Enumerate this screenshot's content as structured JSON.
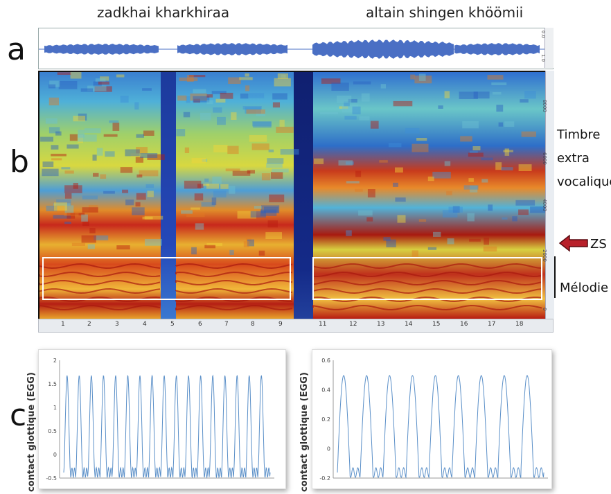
{
  "titles": {
    "left": "zadkhai kharkhiraa",
    "right": "altain shingen khöömii"
  },
  "panel_letters": {
    "a": "a",
    "b": "b",
    "c": "c"
  },
  "waveform": {
    "ruler_labels": [
      "0.0",
      "1.0"
    ],
    "color": "#4a6fc4"
  },
  "spectrogram": {
    "freq_labels": [
      "8000",
      "6000",
      "4000",
      "2000",
      "0"
    ],
    "time_labels": [
      "1",
      "2",
      "3",
      "4",
      "5",
      "6",
      "7",
      "8",
      "9",
      "11",
      "12",
      "13",
      "14",
      "15",
      "16",
      "17",
      "18"
    ],
    "box_color": "#ffffff"
  },
  "annotations": {
    "timbre_line1": "Timbre",
    "timbre_line2": "extra",
    "timbre_line3": "vocalique",
    "zs": "ZS",
    "melodie": "Mélodie",
    "arrow_color": "#b8202a"
  },
  "egg": {
    "ylabel": "contact glottique (EGG)",
    "left_ticks": [
      "2",
      "1.5",
      "1",
      "0.5",
      "0",
      "-0.5"
    ],
    "right_ticks": [
      "0.6",
      "0.4",
      "0.2",
      "0",
      "-0.2"
    ],
    "line_color": "#5a8fc8"
  }
}
